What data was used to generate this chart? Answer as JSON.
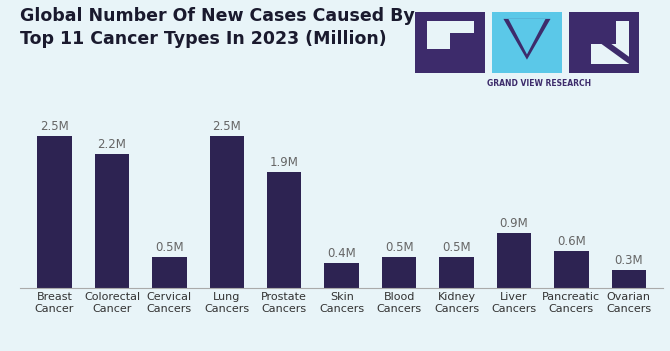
{
  "title_line1": "Global Number Of New Cases Caused By",
  "title_line2": "Top 11 Cancer Types In 2023 (Million)",
  "categories": [
    "Breast\nCancer",
    "Colorectal\nCancer",
    "Cervical\nCancers",
    "Lung\nCancers",
    "Prostate\nCancers",
    "Skin\nCancers",
    "Blood\nCancers",
    "Kidney\nCancers",
    "Liver\nCancers",
    "Pancreatic\nCancers",
    "Ovarian\nCancers"
  ],
  "values": [
    2.5,
    2.2,
    0.5,
    2.5,
    1.9,
    0.4,
    0.5,
    0.5,
    0.9,
    0.6,
    0.3
  ],
  "labels": [
    "2.5M",
    "2.2M",
    "0.5M",
    "2.5M",
    "1.9M",
    "0.4M",
    "0.5M",
    "0.5M",
    "0.9M",
    "0.6M",
    "0.3M"
  ],
  "bar_color": "#2d2352",
  "background_color": "#e8f4f8",
  "title_color": "#1a1a2e",
  "label_color": "#666666",
  "xticklabel_color": "#333333",
  "ylim": [
    0,
    3.0
  ],
  "title_fontsize": 12.5,
  "label_fontsize": 8.5,
  "tick_fontsize": 8,
  "logo_dark": "#3d2b6b",
  "logo_blue": "#5bc8e8",
  "logo_text_color": "#3d2b6b"
}
